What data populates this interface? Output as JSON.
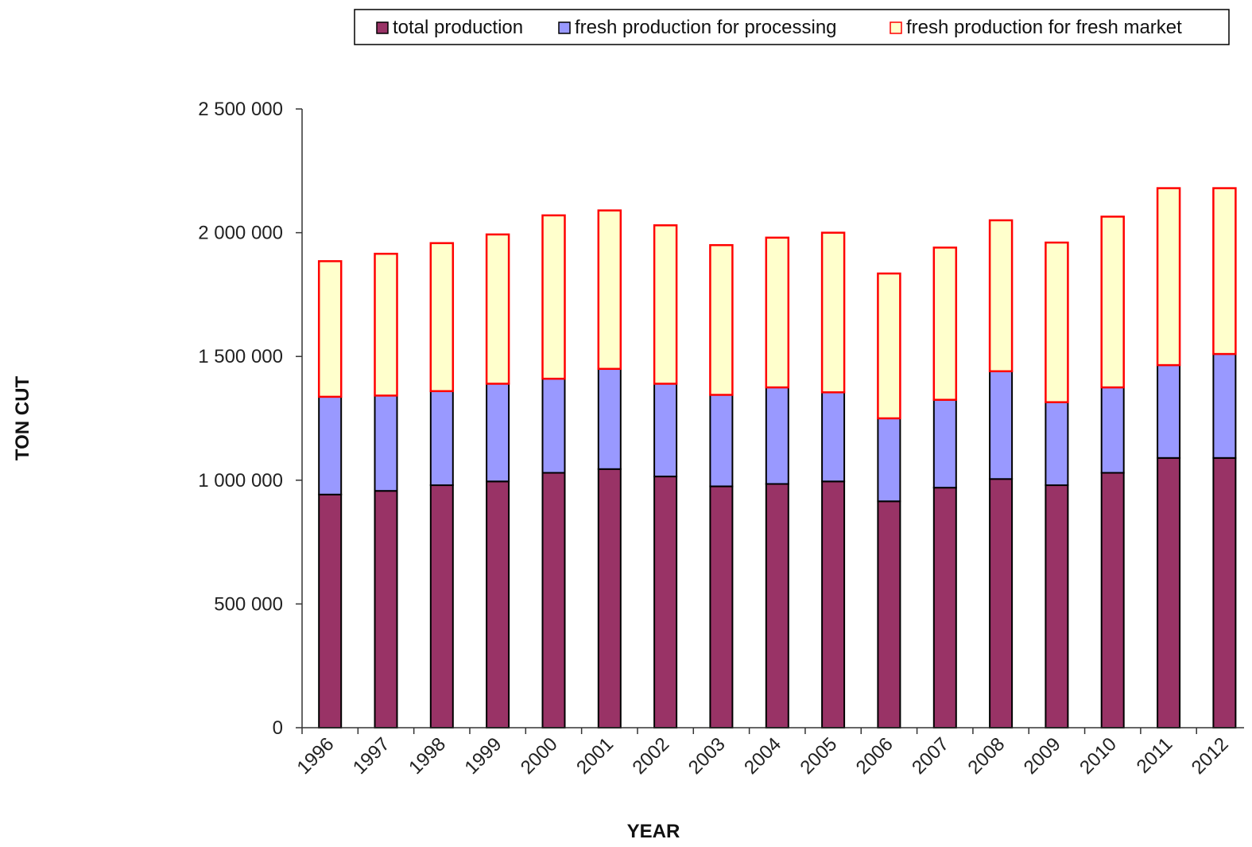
{
  "chart_data": {
    "type": "bar",
    "stacked": true,
    "title": "",
    "xlabel": "YEAR",
    "ylabel": "TON CUT",
    "ylim": [
      0,
      2500000
    ],
    "yticks": [
      0,
      500000,
      1000000,
      1500000,
      2000000,
      2500000
    ],
    "ytick_labels": [
      "0",
      "500 000",
      "1 000 000",
      "1 500 000",
      "2 000 000",
      "2 500 000"
    ],
    "grid": false,
    "legend_position": "top-right",
    "categories": [
      "1996",
      "1997",
      "1998",
      "1999",
      "2000",
      "2001",
      "2002",
      "2003",
      "2004",
      "2005",
      "2006",
      "2007",
      "2008",
      "2009",
      "2010",
      "2011",
      "2012"
    ],
    "series": [
      {
        "name": "total production",
        "color": "#993366",
        "stroke": "#000000",
        "values": [
          942000,
          957000,
          980000,
          995000,
          1030000,
          1045000,
          1015000,
          975000,
          985000,
          995000,
          915000,
          970000,
          1005000,
          980000,
          1030000,
          1090000,
          1090000
        ]
      },
      {
        "name": "fresh production for processing",
        "color": "#9999ff",
        "stroke": "#000000",
        "values": [
          395000,
          385000,
          380000,
          395000,
          380000,
          405000,
          375000,
          370000,
          390000,
          360000,
          335000,
          355000,
          435000,
          335000,
          345000,
          375000,
          420000
        ]
      },
      {
        "name": "fresh production for fresh market",
        "color": "#ffffcc",
        "stroke": "#ff0000",
        "values": [
          548000,
          573000,
          598000,
          603000,
          660000,
          640000,
          640000,
          605000,
          605000,
          645000,
          585000,
          615000,
          610000,
          645000,
          690000,
          715000,
          670000
        ]
      }
    ]
  }
}
